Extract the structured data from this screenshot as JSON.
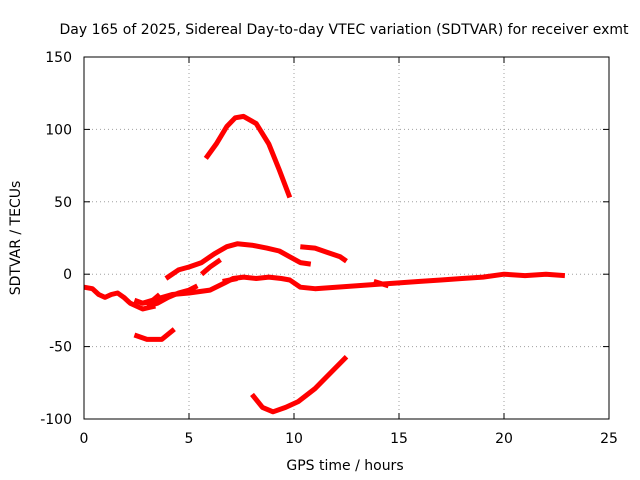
{
  "chart_data": {
    "type": "line",
    "title": "Day 165 of 2025, Sidereal Day-to-day VTEC variation (SDTVAR) for receiver exmt",
    "xlabel": "GPS time / hours",
    "ylabel": "SDTVAR / TECUs",
    "xlim": [
      0,
      25
    ],
    "ylim": [
      -100,
      150
    ],
    "xticks": [
      0,
      5,
      10,
      15,
      20,
      25
    ],
    "yticks": [
      -100,
      -50,
      0,
      50,
      100,
      150
    ],
    "grid": true,
    "series_color": "#ff0000",
    "series": [
      {
        "name": "arc-main",
        "points": [
          [
            0.0,
            -9
          ],
          [
            0.4,
            -10
          ],
          [
            0.7,
            -14
          ],
          [
            1.0,
            -16
          ],
          [
            1.3,
            -14
          ],
          [
            1.6,
            -13
          ],
          [
            1.9,
            -16
          ],
          [
            2.2,
            -20
          ],
          [
            2.5,
            -22
          ],
          [
            2.8,
            -24
          ],
          [
            3.1,
            -23
          ],
          [
            3.4,
            -22
          ]
        ]
      },
      {
        "name": "arc-long",
        "points": [
          [
            2.8,
            -20
          ],
          [
            3.5,
            -17
          ],
          [
            4.2,
            -14
          ],
          [
            5.0,
            -13
          ],
          [
            6.0,
            -11
          ],
          [
            6.7,
            -6
          ],
          [
            7.1,
            -3
          ],
          [
            7.6,
            -2
          ],
          [
            8.2,
            -3
          ],
          [
            8.8,
            -2
          ],
          [
            9.4,
            -3
          ],
          [
            9.8,
            -4
          ],
          [
            10.3,
            -9
          ],
          [
            11.0,
            -10
          ],
          [
            12.0,
            -9
          ],
          [
            13.0,
            -8
          ],
          [
            14.0,
            -7
          ],
          [
            15.0,
            -6
          ],
          [
            16.0,
            -5
          ],
          [
            17.0,
            -4
          ],
          [
            18.0,
            -3
          ],
          [
            19.0,
            -2
          ],
          [
            20.0,
            0
          ],
          [
            21.0,
            -1
          ],
          [
            22.0,
            0
          ],
          [
            22.9,
            -1
          ]
        ]
      },
      {
        "name": "arc-sep",
        "points": [
          [
            2.4,
            -18
          ],
          [
            2.8,
            -20
          ],
          [
            3.2,
            -19
          ],
          [
            3.6,
            -14
          ]
        ]
      },
      {
        "name": "arc-low",
        "points": [
          [
            2.4,
            -42
          ],
          [
            3.0,
            -45
          ],
          [
            3.7,
            -45
          ],
          [
            4.3,
            -38
          ]
        ]
      },
      {
        "name": "arc-mid",
        "points": [
          [
            3.0,
            -22
          ],
          [
            3.5,
            -20
          ],
          [
            4.0,
            -16
          ],
          [
            4.5,
            -13
          ],
          [
            5.0,
            -11
          ],
          [
            5.4,
            -8
          ]
        ]
      },
      {
        "name": "arc-rise",
        "points": [
          [
            3.9,
            -3
          ],
          [
            4.5,
            3
          ],
          [
            5.0,
            5
          ],
          [
            5.6,
            8
          ],
          [
            6.2,
            14
          ],
          [
            6.8,
            19
          ],
          [
            7.3,
            21
          ],
          [
            8.0,
            20
          ],
          [
            8.7,
            18
          ],
          [
            9.3,
            16
          ],
          [
            9.8,
            12
          ],
          [
            10.3,
            8
          ],
          [
            10.8,
            7
          ]
        ]
      },
      {
        "name": "arc-step",
        "points": [
          [
            5.6,
            0
          ],
          [
            6.0,
            5
          ],
          [
            6.5,
            10
          ]
        ]
      },
      {
        "name": "arc-small-1",
        "points": [
          [
            6.6,
            -5
          ],
          [
            7.3,
            -3
          ]
        ]
      },
      {
        "name": "arc-peak",
        "points": [
          [
            5.8,
            80
          ],
          [
            6.3,
            90
          ],
          [
            6.8,
            102
          ],
          [
            7.2,
            108
          ],
          [
            7.6,
            109
          ],
          [
            8.2,
            104
          ],
          [
            8.8,
            90
          ],
          [
            9.3,
            72
          ],
          [
            9.8,
            53
          ]
        ]
      },
      {
        "name": "arc-right",
        "points": [
          [
            10.3,
            19
          ],
          [
            11.0,
            18
          ],
          [
            11.6,
            15
          ],
          [
            12.2,
            12
          ],
          [
            12.5,
            9
          ]
        ]
      },
      {
        "name": "arc-trough",
        "points": [
          [
            8.0,
            -83
          ],
          [
            8.5,
            -92
          ],
          [
            9.0,
            -95
          ],
          [
            9.6,
            -92
          ],
          [
            10.2,
            -88
          ],
          [
            11.0,
            -79
          ],
          [
            12.5,
            -57
          ]
        ]
      },
      {
        "name": "arc-small-2",
        "points": [
          [
            13.8,
            -5
          ],
          [
            14.5,
            -8
          ]
        ]
      }
    ]
  }
}
